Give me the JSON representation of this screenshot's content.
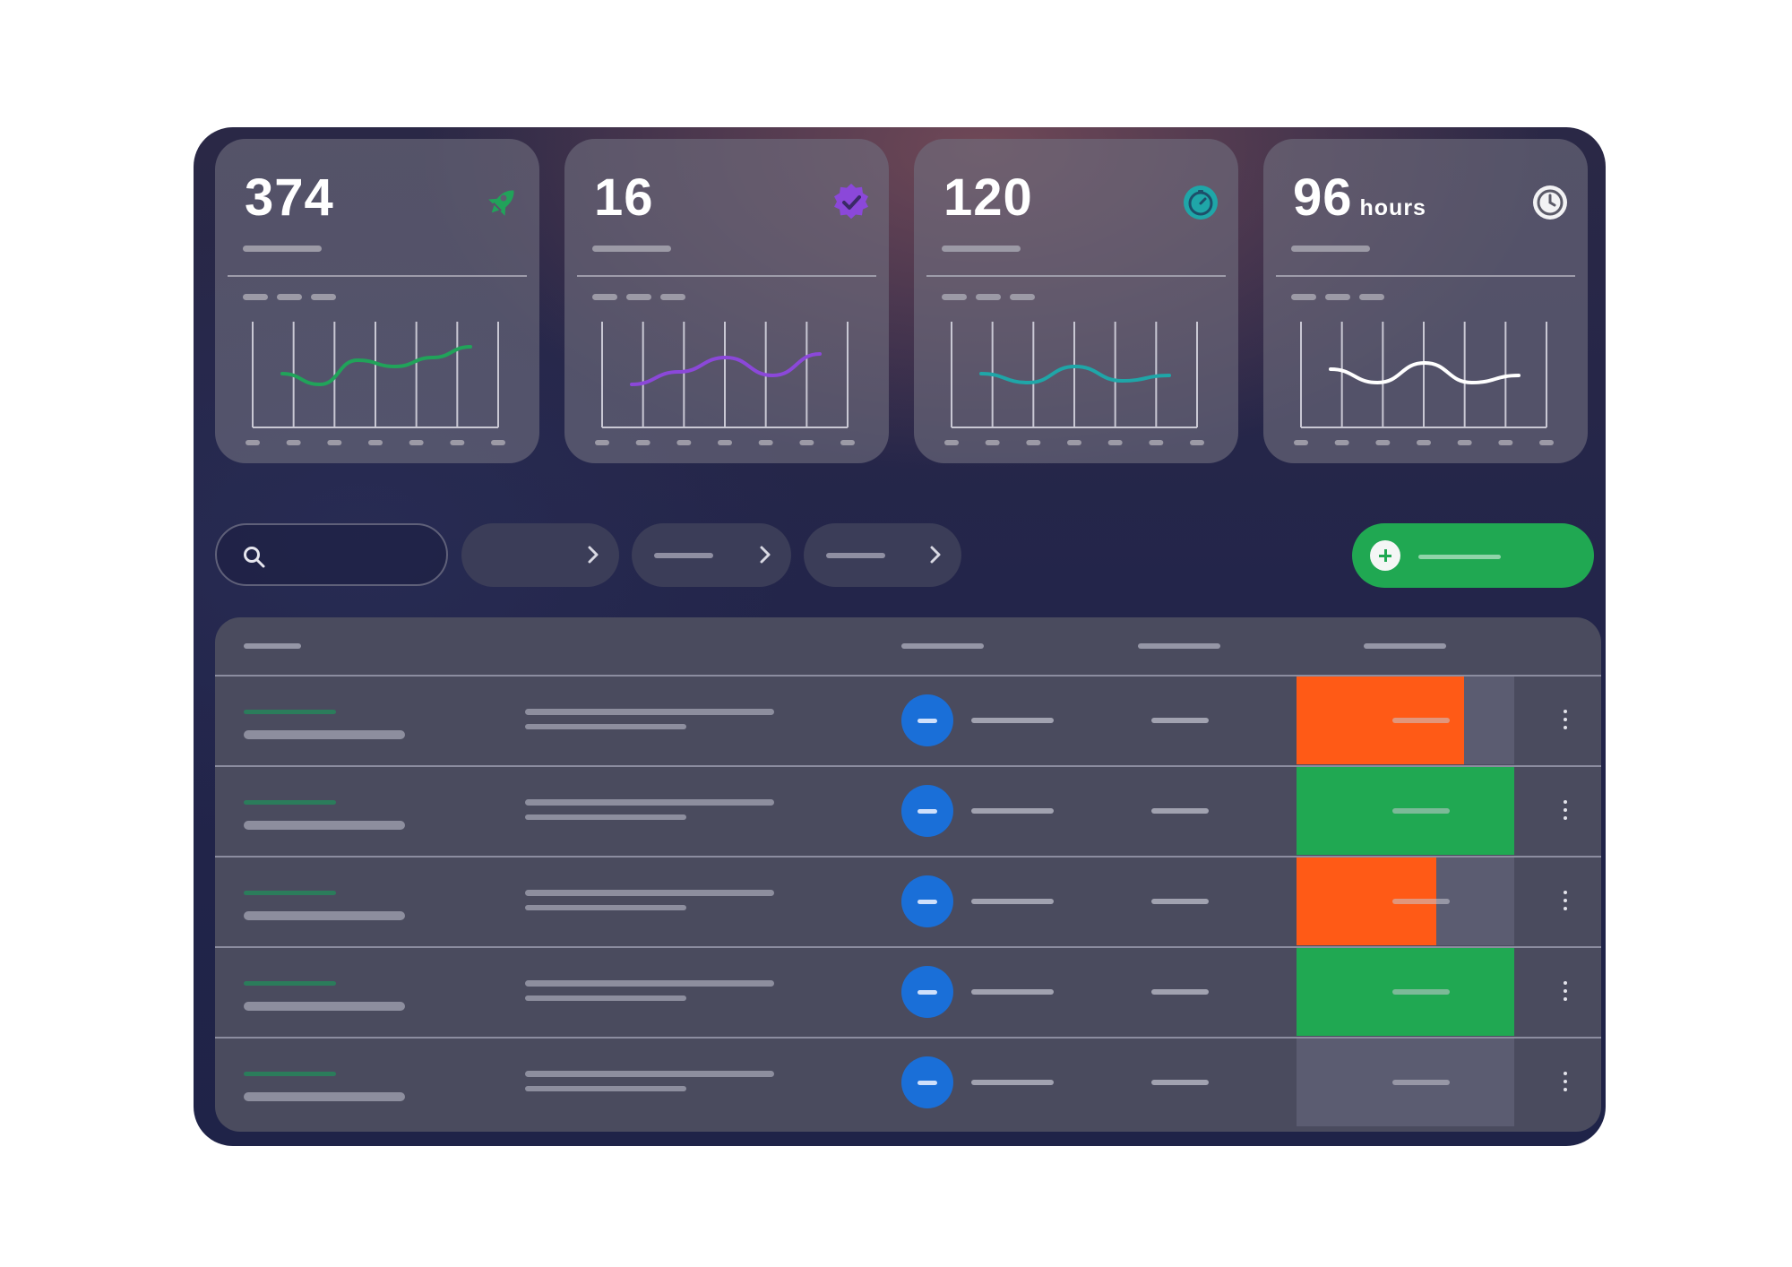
{
  "colors": {
    "green": "#20a852",
    "orange": "#ff5a16",
    "blue": "#1a6fd8",
    "purple": "#8b48d9",
    "teal": "#1fa6a8",
    "white": "#ffffff"
  },
  "stats": [
    {
      "value": "374",
      "unit": "",
      "icon": "rocket-icon",
      "color": "#21a35a",
      "series": [
        40,
        28,
        55,
        48,
        58,
        70
      ]
    },
    {
      "value": "16",
      "unit": "",
      "icon": "verified-badge-icon",
      "color": "#8b48d9",
      "series": [
        28,
        42,
        58,
        38,
        62
      ]
    },
    {
      "value": "120",
      "unit": "",
      "icon": "stopwatch-icon",
      "color": "#1fa6a8",
      "series": [
        40,
        30,
        48,
        32,
        38
      ]
    },
    {
      "value": "96",
      "unit": "hours",
      "icon": "clock-icon",
      "color": "#ffffff",
      "series": [
        45,
        30,
        52,
        30,
        38
      ]
    }
  ],
  "toolbar": {
    "search_icon": "search-icon",
    "filter_chevron_icon": "chevron-right-icon",
    "add_icon": "plus-icon"
  },
  "rows": [
    {
      "status_color": "#ff5a16",
      "progress": 0.77
    },
    {
      "status_color": "#20a852",
      "progress": 1.0
    },
    {
      "status_color": "#ff5a16",
      "progress": 0.64
    },
    {
      "status_color": "#20a852",
      "progress": 1.0
    },
    {
      "status_color": "#20a852",
      "progress": 0.0
    }
  ]
}
